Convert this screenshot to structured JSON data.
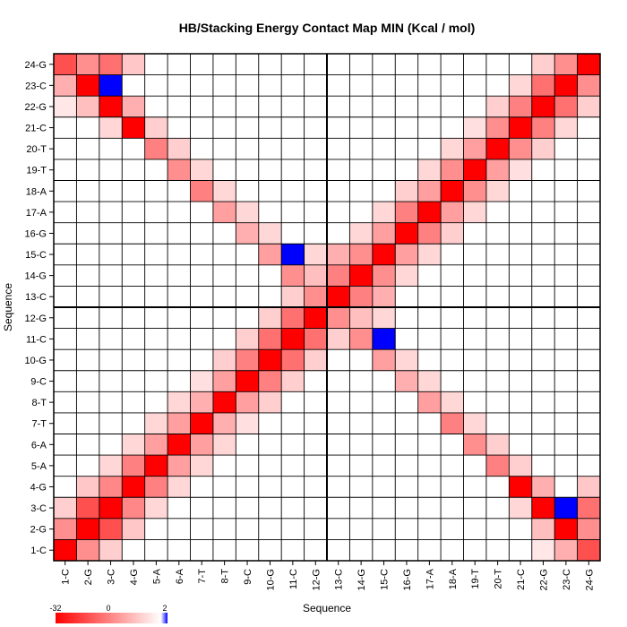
{
  "chart_data": {
    "type": "heatmap",
    "title": "HB/Stacking Energy Contact Map MIN (Kcal / mol)",
    "xlabel": "Sequence",
    "ylabel": "Sequence",
    "labels": [
      "1-C",
      "2-G",
      "3-C",
      "4-G",
      "5-A",
      "6-A",
      "7-T",
      "8-T",
      "9-C",
      "10-G",
      "11-C",
      "12-G",
      "13-C",
      "14-G",
      "15-C",
      "16-G",
      "17-A",
      "18-A",
      "19-T",
      "20-T",
      "21-C",
      "22-G",
      "23-C",
      "24-G"
    ],
    "color_scale": {
      "min": -32,
      "max": 2,
      "tick_labels": [
        "-32",
        "0",
        "2"
      ],
      "min_color": "#ff0000",
      "mid_color": "#ffffff",
      "max_color": "#0000ff"
    },
    "grid": true,
    "strand_divider_after": 12,
    "contacts": [
      [
        1,
        1,
        -32
      ],
      [
        1,
        2,
        -14
      ],
      [
        1,
        3,
        -6
      ],
      [
        1,
        22,
        -3
      ],
      [
        1,
        23,
        -10
      ],
      [
        1,
        24,
        -22
      ],
      [
        2,
        2,
        -32
      ],
      [
        2,
        3,
        -22
      ],
      [
        2,
        4,
        -7
      ],
      [
        2,
        22,
        -8
      ],
      [
        2,
        23,
        -32
      ],
      [
        2,
        24,
        -14
      ],
      [
        3,
        3,
        -32
      ],
      [
        3,
        4,
        -15
      ],
      [
        3,
        5,
        -5
      ],
      [
        3,
        21,
        -5
      ],
      [
        3,
        22,
        -32
      ],
      [
        3,
        23,
        2
      ],
      [
        3,
        24,
        -18
      ],
      [
        4,
        4,
        -32
      ],
      [
        4,
        5,
        -16
      ],
      [
        4,
        6,
        -5
      ],
      [
        4,
        21,
        -32
      ],
      [
        4,
        22,
        -10
      ],
      [
        4,
        24,
        -7
      ],
      [
        5,
        5,
        -32
      ],
      [
        5,
        6,
        -12
      ],
      [
        5,
        7,
        -5
      ],
      [
        5,
        20,
        -16
      ],
      [
        5,
        21,
        -6
      ],
      [
        6,
        6,
        -32
      ],
      [
        6,
        7,
        -12
      ],
      [
        6,
        8,
        -5
      ],
      [
        6,
        19,
        -14
      ],
      [
        6,
        20,
        -6
      ],
      [
        7,
        7,
        -32
      ],
      [
        7,
        8,
        -10
      ],
      [
        7,
        9,
        -4
      ],
      [
        7,
        18,
        -16
      ],
      [
        7,
        19,
        -5
      ],
      [
        8,
        8,
        -32
      ],
      [
        8,
        9,
        -12
      ],
      [
        8,
        10,
        -6
      ],
      [
        8,
        17,
        -12
      ],
      [
        8,
        18,
        -5
      ],
      [
        9,
        9,
        -32
      ],
      [
        9,
        10,
        -16
      ],
      [
        9,
        11,
        -6
      ],
      [
        9,
        16,
        -10
      ],
      [
        9,
        17,
        -5
      ],
      [
        10,
        10,
        -32
      ],
      [
        10,
        11,
        -18
      ],
      [
        10,
        12,
        -6
      ],
      [
        10,
        15,
        -12
      ],
      [
        10,
        16,
        -5
      ],
      [
        11,
        11,
        -32
      ],
      [
        11,
        12,
        -18
      ],
      [
        11,
        13,
        -6
      ],
      [
        11,
        14,
        -14
      ],
      [
        11,
        15,
        2
      ],
      [
        12,
        12,
        -32
      ],
      [
        12,
        13,
        -14
      ],
      [
        12,
        14,
        -8
      ],
      [
        12,
        15,
        -5
      ],
      [
        13,
        13,
        -32
      ],
      [
        13,
        14,
        -16
      ],
      [
        13,
        15,
        -10
      ],
      [
        14,
        14,
        -32
      ],
      [
        14,
        15,
        -14
      ],
      [
        14,
        16,
        -5
      ],
      [
        15,
        15,
        -32
      ],
      [
        15,
        16,
        -12
      ],
      [
        15,
        17,
        -5
      ],
      [
        16,
        16,
        -32
      ],
      [
        16,
        17,
        -16
      ],
      [
        16,
        18,
        -6
      ],
      [
        17,
        17,
        -32
      ],
      [
        17,
        18,
        -12
      ],
      [
        17,
        19,
        -5
      ],
      [
        18,
        18,
        -32
      ],
      [
        18,
        19,
        -14
      ],
      [
        18,
        20,
        -5
      ],
      [
        19,
        19,
        -32
      ],
      [
        19,
        20,
        -12
      ],
      [
        19,
        21,
        -4
      ],
      [
        20,
        20,
        -32
      ],
      [
        20,
        21,
        -14
      ],
      [
        20,
        22,
        -6
      ],
      [
        21,
        21,
        -32
      ],
      [
        21,
        22,
        -16
      ],
      [
        21,
        23,
        -5
      ],
      [
        22,
        22,
        -32
      ],
      [
        22,
        23,
        -18
      ],
      [
        22,
        24,
        -6
      ],
      [
        23,
        23,
        -32
      ],
      [
        23,
        24,
        -14
      ],
      [
        24,
        24,
        -32
      ]
    ]
  }
}
